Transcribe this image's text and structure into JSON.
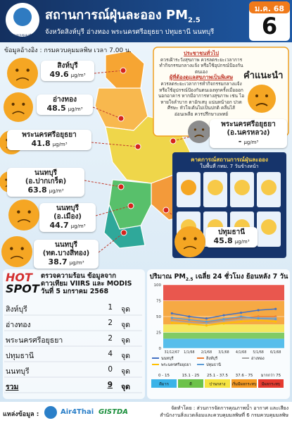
{
  "header": {
    "agency": "กรมควบคุมมลพิษ",
    "title": "สถานการณ์ฝุ่นละออง PM",
    "title_sub": "2.5",
    "subtitle": "จังหวัดสิงห์บุรี อ่างทอง พระนครศรีอยุธยา ปทุมธานี นนทบุรี",
    "month": "ม.ค. 68",
    "day": "6"
  },
  "source_note": "ข้อมูลอ้างอิง : กรมควบคุมมลพิษ เวลา 7.00 น.",
  "unit": "µg/m³",
  "stations": [
    {
      "name": "สิงห์บุรี",
      "value": 49.6
    },
    {
      "name": "อ่างทอง",
      "value": 48.5
    },
    {
      "name": "พระนครศรีอยุธยา",
      "value": 41.8
    },
    {
      "name": "นนทบุรี",
      "district": "(อ.ปากเกร็ด)",
      "value": 63.8
    },
    {
      "name": "นนทบุรี",
      "district": "(อ.เมือง)",
      "value": 44.7
    },
    {
      "name": "นนทบุรี",
      "district": "(ทต.บางสีทอง)",
      "value": 38.7
    },
    {
      "name": "พระนครศรีอยุธยา",
      "district": "(อ.นครหลวง)",
      "value": "-"
    },
    {
      "name": "ปทุมธานี",
      "value": 45.8
    }
  ],
  "advice": {
    "title": "คำแนะนำ",
    "general_title": "ประชาชนทั่วไป",
    "general_text": "ควรเฝ้าระวังสุขภาพ ควรลดระยะเวลาการทำกิจกรรมกลางแจ้ง หรือใช้อุปกรณ์ป้องกันตนเอง",
    "sensitive_title": "ผู้ที่ต้องดูแลสุขภาพเป็นพิเศษ",
    "sensitive_text": "ควรลดระยะเวลาการทำกิจกรรมกลางแจ้ง หรือใช้อุปกรณ์ป้องกันตนเองทุกครั้งเมื่อออกนอกอาคาร หากมีอาการทางสุขภาพ เช่น ไอ หายใจลำบาก ตาอักเสบ แน่นหน้าอก ปวดศีรษะ หัวใจเต้นไม่เป็นปกติ คลื่นไส้ อ่อนเพลีย ควรปรึกษาแพทย์"
  },
  "forecast": {
    "title": "คาดการณ์สถานการณ์ฝุ่นละออง",
    "subtitle": "ในพื้นที่ กทม. 7 วันข้างหน้า"
  },
  "hotspot": {
    "badge_top": "HOT",
    "badge_bottom": "SPOT",
    "title": "ตรวจความร้อน ข้อมูลจาก",
    "source": "ดาวเทียม VIIRS และ MODIS",
    "date": "วันที่ 5 มกราคม 2568",
    "unit": "จุด",
    "rows": [
      {
        "province": "สิงห์บุรี",
        "count": 1
      },
      {
        "province": "อ่างทอง",
        "count": 2
      },
      {
        "province": "พระนครศรีอยุธยา",
        "count": 2
      },
      {
        "province": "ปทุมธานี",
        "count": 4
      },
      {
        "province": "นนทบุรี",
        "count": 0
      }
    ],
    "total": {
      "label": "รวม",
      "count": 9
    }
  },
  "trend_chart": {
    "type": "line",
    "title": "ปริมาณ PM",
    "title_sub": "2.5",
    "title_rest": " เฉลี่ย 24 ชั่วโมง ย้อนหลัง 7 วัน",
    "categories": [
      "31/12/67",
      "1/1/68",
      "2/1/68",
      "3/1/68",
      "4/1/68",
      "5/1/68",
      "6/1/68"
    ],
    "series": [
      {
        "name": "นนทบุรี",
        "color": "#4472c4",
        "values": [
          55,
          50,
          47,
          52,
          56,
          60,
          62
        ]
      },
      {
        "name": "สิงห์บุรี",
        "color": "#ed7d31",
        "values": [
          45,
          42,
          40,
          44,
          48,
          50,
          50
        ]
      },
      {
        "name": "อ่างทอง",
        "color": "#a5a5a5",
        "values": [
          44,
          41,
          39,
          43,
          46,
          48,
          48
        ]
      },
      {
        "name": "พระนครศรีอยุธยา",
        "color": "#ffc000",
        "values": [
          40,
          38,
          36,
          39,
          42,
          44,
          42
        ]
      },
      {
        "name": "ปทุมธานี",
        "color": "#5b9bd5",
        "values": [
          48,
          45,
          42,
          46,
          50,
          47,
          46
        ]
      }
    ],
    "ylim": [
      0,
      100
    ],
    "yticks": [
      0,
      25,
      50,
      75,
      100
    ],
    "bands": [
      {
        "from": 0,
        "to": 15,
        "label": "0 - 15",
        "level": "ดีมาก",
        "color": "#3bb3e8"
      },
      {
        "from": 15.1,
        "to": 25,
        "label": "15.1 - 25",
        "level": "ดี",
        "color": "#6cc24a"
      },
      {
        "from": 25.1,
        "to": 37.5,
        "label": "25.1 - 37.5",
        "level": "ปานกลาง",
        "color": "#f5e342"
      },
      {
        "from": 37.6,
        "to": 75,
        "label": "37.6 - 75",
        "level": "เริ่มมีผลกระทบ",
        "color": "#f59a23"
      },
      {
        "from": 75,
        "label": "มากกว่า 75",
        "level": "มีผลกระทบ",
        "color": "#e53a2f"
      }
    ]
  },
  "footer": {
    "source_label": "แหล่งข้อมูล :",
    "logo1": "Air4Thai",
    "logo2": "GISTDA",
    "credit1": "จัดทำโดย : ส่วนการจัดการคุณภาพน้ำ อากาศ และเสียง",
    "credit2": "สำนักงานสิ่งแวดล้อมและควบคุมมลพิษที่ 6 กรมควบคุมมลพิษ"
  }
}
